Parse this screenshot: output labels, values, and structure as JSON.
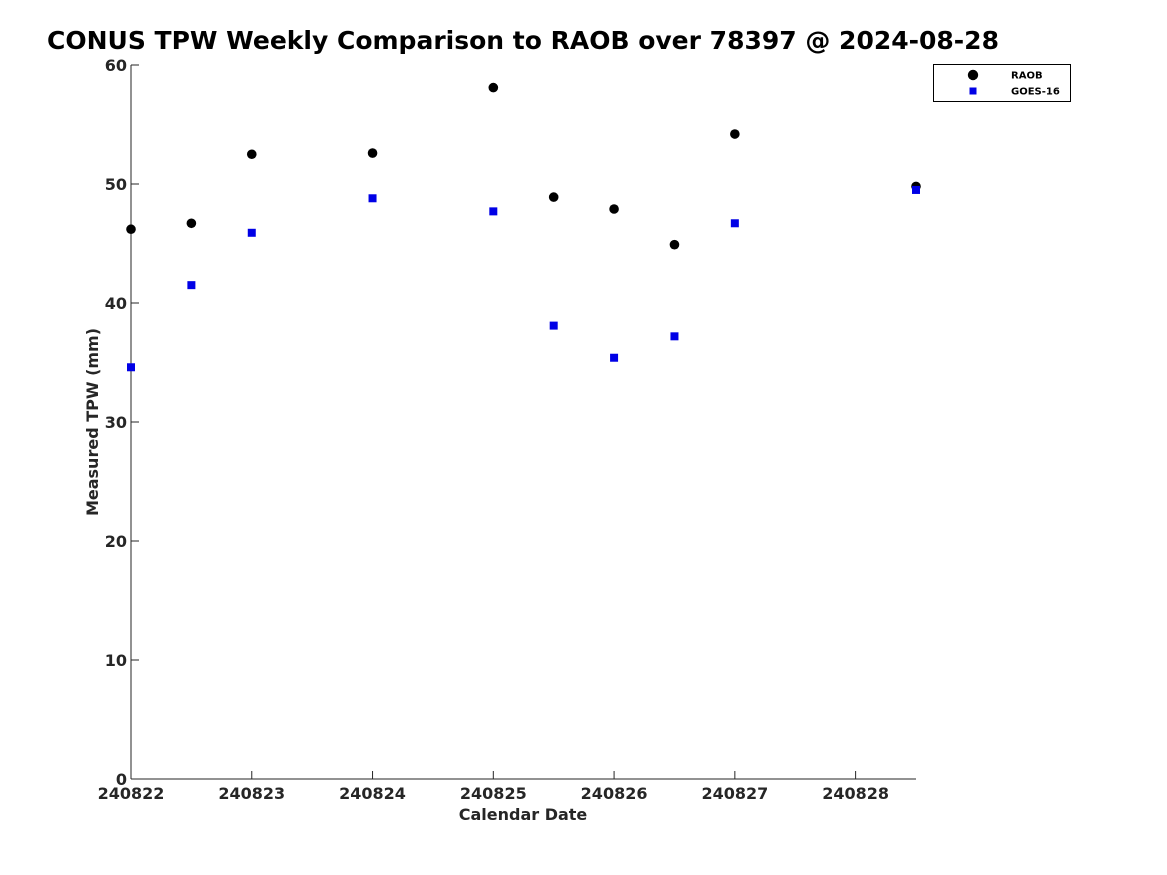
{
  "chart_data": {
    "type": "scatter",
    "title": "CONUS TPW Weekly Comparison to RAOB over 78397 @ 2024-08-28",
    "xlabel": "Calendar Date",
    "ylabel": "Measured TPW (mm)",
    "xlim": [
      240822,
      240828.5
    ],
    "ylim": [
      0,
      60
    ],
    "xticks": [
      240822,
      240823,
      240824,
      240825,
      240826,
      240827,
      240828
    ],
    "xtick_labels": [
      "240822",
      "240823",
      "240824",
      "240825",
      "240826",
      "240827",
      "240828"
    ],
    "yticks": [
      0,
      10,
      20,
      30,
      40,
      50,
      60
    ],
    "ytick_labels": [
      "0",
      "10",
      "20",
      "30",
      "40",
      "50",
      "60"
    ],
    "grid": false,
    "legend_position": "top-right",
    "series": [
      {
        "name": "RAOB",
        "marker": "circle",
        "color": "#000000",
        "x": [
          240822.0,
          240822.5,
          240823.0,
          240824.0,
          240825.0,
          240825.5,
          240826.0,
          240826.5,
          240827.0,
          240828.5
        ],
        "y": [
          46.2,
          46.7,
          52.5,
          52.6,
          58.1,
          48.9,
          47.9,
          44.9,
          54.2,
          49.8
        ]
      },
      {
        "name": "GOES-16",
        "marker": "square",
        "color": "#0000e6",
        "x": [
          240822.0,
          240822.5,
          240823.0,
          240824.0,
          240825.0,
          240825.5,
          240826.0,
          240826.5,
          240827.0,
          240828.5
        ],
        "y": [
          34.6,
          41.5,
          45.9,
          48.8,
          47.7,
          38.1,
          35.4,
          37.2,
          46.7,
          49.5
        ]
      }
    ]
  }
}
